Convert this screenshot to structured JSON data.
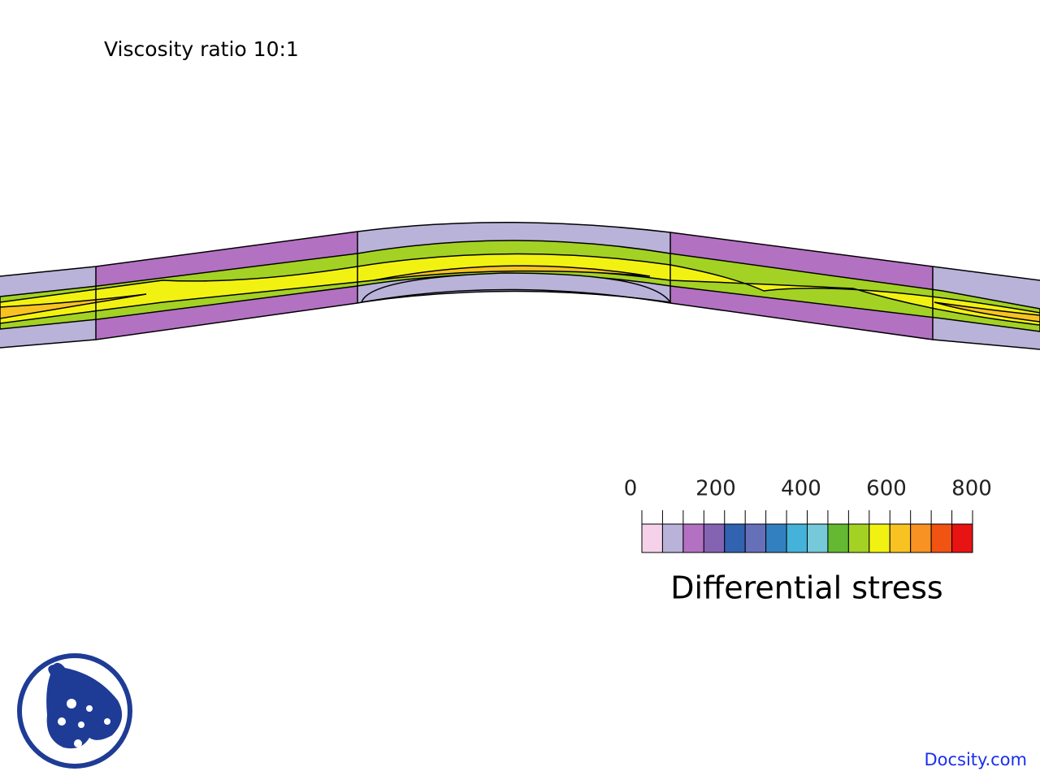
{
  "header": {
    "title": "Viscosity ratio 10:1"
  },
  "colorbar": {
    "labels": [
      0,
      200,
      400,
      600,
      800
    ],
    "title": "Differential stress",
    "colors": [
      "#f5d2ea",
      "#b9b2d9",
      "#b371c2",
      "#8464b2",
      "#3263b1",
      "#6670b9",
      "#3380c1",
      "#45b2d9",
      "#75c9d9",
      "#63b932",
      "#a3d224",
      "#f2f212",
      "#f8c322",
      "#f89222",
      "#f05312",
      "#e81414"
    ]
  },
  "footer": {
    "brand": "Docsity.com"
  }
}
